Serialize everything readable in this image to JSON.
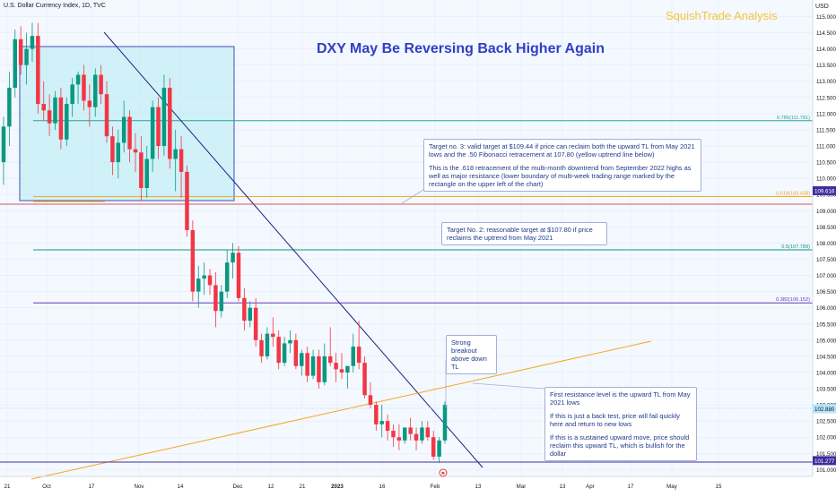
{
  "header": {
    "symbol_label": "U.S. Dollar Currency Index, 1D, TVC",
    "watermark": "SquishTrade Analysis",
    "currency": "USD"
  },
  "annotations": {
    "target3": [
      "Target no. 3: valid target at $109.44 if price can reclaim both the upward TL from May 2021 lows and the .50 Fibonacci retracement at 107.80 (yellow uptrend line below)",
      "This is the .618 retracement of the  multi-month downtrend from September 2022 highs as well as major resistance (lower boundary of multi-week trading range marked by the rectangle on the upper left of the chart)"
    ],
    "target2": [
      "Target No. 2: reasonable target at $107.80 if price reclaims the uptrend from May 2021"
    ],
    "breakout": [
      "Strong breakout above down TL"
    ],
    "first_resistance": [
      "First resistance level is the upward TL from May 2021 lows",
      "If this is just a back test, price will fail quickly here and return to new lows",
      "If this is a sustained upward move, price should reclaim this upward TL, which is bullish for the dollar"
    ]
  },
  "chart_data": {
    "type": "candlestick",
    "title": "DXY May Be Reversing Back Higher Again",
    "x_ticks": [
      "21",
      "Oct",
      "17",
      "Nov",
      "14",
      "Dec",
      "12",
      "21",
      "2023",
      "16",
      "Feb",
      "13",
      "Mar",
      "13",
      "Apr",
      "17",
      "May",
      "15"
    ],
    "y_ticks": [
      "101.000",
      "101.500",
      "102.000",
      "102.500",
      "103.000",
      "103.500",
      "104.000",
      "104.500",
      "105.000",
      "105.500",
      "106.000",
      "106.500",
      "107.000",
      "107.500",
      "108.000",
      "108.500",
      "109.000",
      "109.500",
      "110.000",
      "110.500",
      "111.000",
      "111.500",
      "112.000",
      "112.500",
      "113.000",
      "113.500",
      "114.000",
      "114.500",
      "115.000"
    ],
    "ylim": [
      100.9,
      115.4
    ],
    "price_labels": [
      "109.616",
      "102.880",
      "101.277"
    ],
    "fib_levels": [
      {
        "label": "0.786(111.781)",
        "value": 111.781,
        "color": "#26a69a"
      },
      {
        "label": "0.618(109.438)",
        "value": 109.438,
        "color": "#f5a623"
      },
      {
        "label": "0.5(107.789)",
        "value": 107.789,
        "color": "#089981"
      },
      {
        "label": "0.382(106.152)",
        "value": 106.152,
        "color": "#673ab7"
      }
    ],
    "candles": [
      [
        110.5,
        111.9,
        109.8,
        111.6
      ],
      [
        111.6,
        113.3,
        111.0,
        112.8
      ],
      [
        112.8,
        114.6,
        112.5,
        114.3
      ],
      [
        114.3,
        114.7,
        113.2,
        113.5
      ],
      [
        113.5,
        114.5,
        112.9,
        114.0
      ],
      [
        114.0,
        114.8,
        113.6,
        114.4
      ],
      [
        114.4,
        114.8,
        112.0,
        112.3
      ],
      [
        112.3,
        113.0,
        111.8,
        112.1
      ],
      [
        112.1,
        112.6,
        111.3,
        111.7
      ],
      [
        111.7,
        112.7,
        111.5,
        112.5
      ],
      [
        112.5,
        112.8,
        110.9,
        111.2
      ],
      [
        111.2,
        112.5,
        111.0,
        112.3
      ],
      [
        112.3,
        113.1,
        111.9,
        112.9
      ],
      [
        112.9,
        113.3,
        112.3,
        113.2
      ],
      [
        113.2,
        113.5,
        112.1,
        112.4
      ],
      [
        112.4,
        112.9,
        111.6,
        112.2
      ],
      [
        112.2,
        113.4,
        111.9,
        113.2
      ],
      [
        113.2,
        113.5,
        112.3,
        112.6
      ],
      [
        112.6,
        113.0,
        111.1,
        111.3
      ],
      [
        111.3,
        111.6,
        110.1,
        110.5
      ],
      [
        110.5,
        111.5,
        110.0,
        111.1
      ],
      [
        111.1,
        112.4,
        110.8,
        111.9
      ],
      [
        111.9,
        112.1,
        110.5,
        110.9
      ],
      [
        110.9,
        111.4,
        110.2,
        110.8
      ],
      [
        110.8,
        111.3,
        109.3,
        109.7
      ],
      [
        109.7,
        111.0,
        109.4,
        110.6
      ],
      [
        110.6,
        112.4,
        110.2,
        112.2
      ],
      [
        112.2,
        112.5,
        110.6,
        111.0
      ],
      [
        111.0,
        113.2,
        110.7,
        112.8
      ],
      [
        112.8,
        113.1,
        110.3,
        110.6
      ],
      [
        110.6,
        111.5,
        109.6,
        110.9
      ],
      [
        110.9,
        111.3,
        109.4,
        110.2
      ],
      [
        110.2,
        110.4,
        108.2,
        108.4
      ],
      [
        108.4,
        108.7,
        106.2,
        106.5
      ],
      [
        106.5,
        107.3,
        106.0,
        106.9
      ],
      [
        106.9,
        107.4,
        106.4,
        107.0
      ],
      [
        107.0,
        107.2,
        106.4,
        106.7
      ],
      [
        106.7,
        107.1,
        105.4,
        105.9
      ],
      [
        105.9,
        106.7,
        105.7,
        106.5
      ],
      [
        106.5,
        107.8,
        106.3,
        107.4
      ],
      [
        107.4,
        108.0,
        106.9,
        107.7
      ],
      [
        107.7,
        107.9,
        106.2,
        106.3
      ],
      [
        106.3,
        106.6,
        105.3,
        105.6
      ],
      [
        105.6,
        106.2,
        105.4,
        106.0
      ],
      [
        106.0,
        106.3,
        104.8,
        105.0
      ],
      [
        105.0,
        105.2,
        104.3,
        104.5
      ],
      [
        104.5,
        105.4,
        104.4,
        105.2
      ],
      [
        105.2,
        105.7,
        104.8,
        105.1
      ],
      [
        105.1,
        105.3,
        104.1,
        104.3
      ],
      [
        104.3,
        105.1,
        104.2,
        104.9
      ],
      [
        104.9,
        105.3,
        104.6,
        105.0
      ],
      [
        105.0,
        105.2,
        104.1,
        104.2
      ],
      [
        104.2,
        104.7,
        103.9,
        104.6
      ],
      [
        104.6,
        104.8,
        103.7,
        103.9
      ],
      [
        103.9,
        104.7,
        103.8,
        104.5
      ],
      [
        104.5,
        104.7,
        103.5,
        103.7
      ],
      [
        103.7,
        104.9,
        103.6,
        104.5
      ],
      [
        104.5,
        105.4,
        104.2,
        104.3
      ],
      [
        104.3,
        104.6,
        103.7,
        104.1
      ],
      [
        104.1,
        104.6,
        103.8,
        104.0
      ],
      [
        104.0,
        104.2,
        103.5,
        104.2
      ],
      [
        104.2,
        105.2,
        104.0,
        104.8
      ],
      [
        104.8,
        105.6,
        104.1,
        104.3
      ],
      [
        104.3,
        104.5,
        103.2,
        103.3
      ],
      [
        103.3,
        103.7,
        102.9,
        103.0
      ],
      [
        103.0,
        103.1,
        102.2,
        102.4
      ],
      [
        102.4,
        103.0,
        102.0,
        102.5
      ],
      [
        102.5,
        102.7,
        101.9,
        102.2
      ],
      [
        102.2,
        102.4,
        101.7,
        102.0
      ],
      [
        102.0,
        102.4,
        101.6,
        101.9
      ],
      [
        101.9,
        102.3,
        101.8,
        102.3
      ],
      [
        102.3,
        102.6,
        101.9,
        102.1
      ],
      [
        102.1,
        102.3,
        101.6,
        101.9
      ],
      [
        101.9,
        102.5,
        101.8,
        102.3
      ],
      [
        102.3,
        102.5,
        101.9,
        102.0
      ],
      [
        102.0,
        102.2,
        101.3,
        101.4
      ],
      [
        101.4,
        102.0,
        101.2,
        101.9
      ],
      [
        101.9,
        103.1,
        101.8,
        103.0
      ]
    ]
  }
}
